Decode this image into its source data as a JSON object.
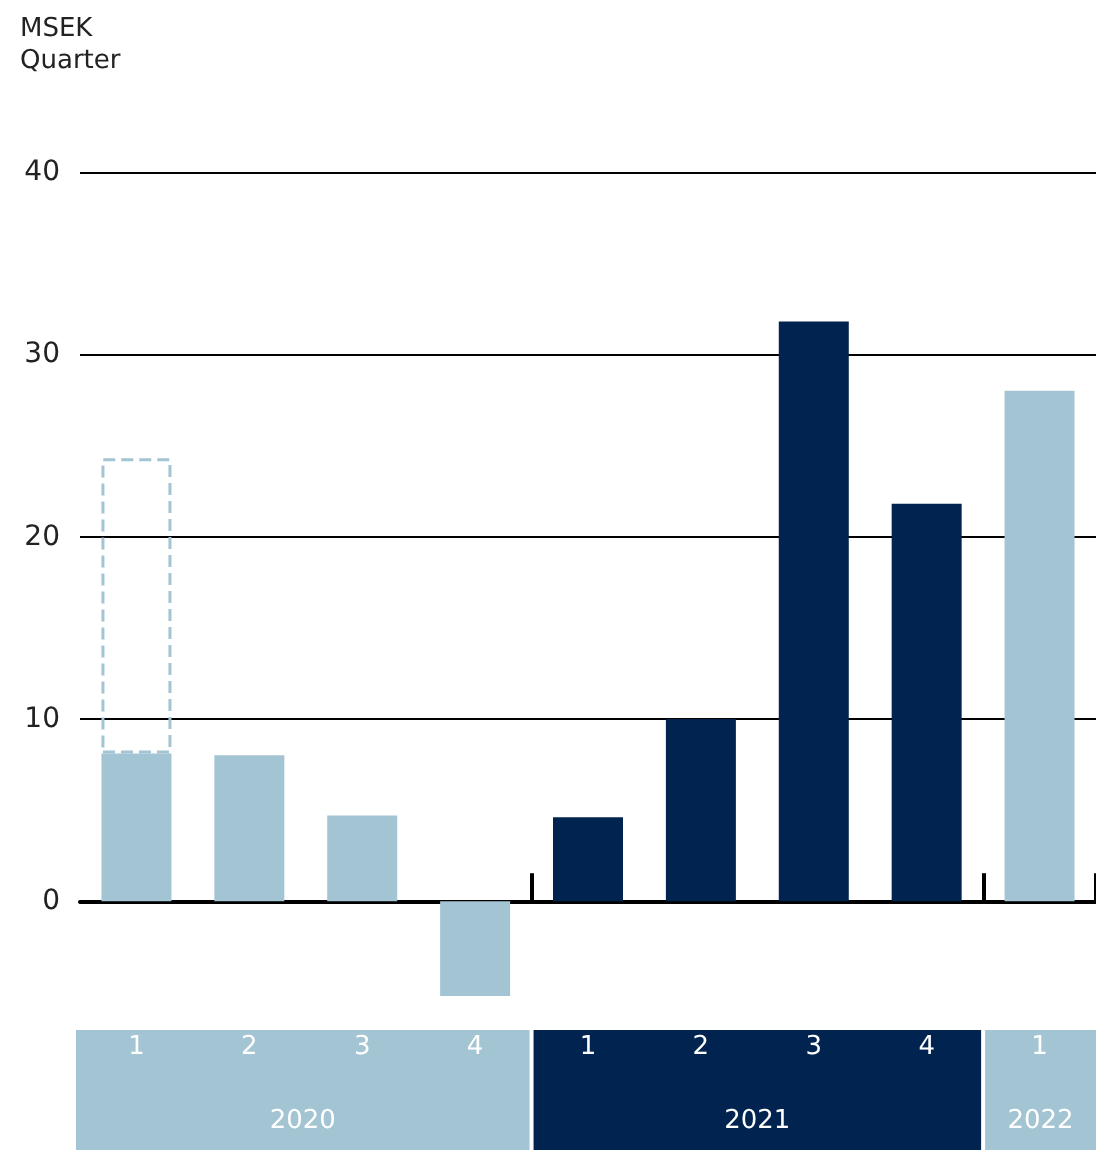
{
  "chart_data": {
    "type": "bar",
    "ylabel": "MSEK",
    "xlabel": "Quarter",
    "categories": [
      "1",
      "2",
      "3",
      "4",
      "1",
      "2",
      "3",
      "4",
      "1"
    ],
    "stacked": true,
    "series": [
      {
        "colors": [
          "#a3c4d3",
          "#a3c4d3",
          "#a3c4d3",
          "#a3c4d3",
          "#002350",
          "#002350",
          "#002350",
          "#002350",
          "#a3c4d3"
        ],
        "values": [
          8.1,
          8.0,
          4.7,
          -5.2,
          4.6,
          10.0,
          31.8,
          21.8,
          28.0
        ]
      },
      {
        "color": "#a3c4d3",
        "line_style": "dashed",
        "values": [
          16.2,
          null,
          null,
          null,
          null,
          null,
          null,
          null,
          null
        ]
      }
    ],
    "annotations": [
      "2020",
      "2021",
      "2022"
    ],
    "ylim": [
      -5.2,
      40
    ],
    "yticks": [
      0,
      10,
      20,
      30,
      40
    ],
    "grid": "y"
  }
}
